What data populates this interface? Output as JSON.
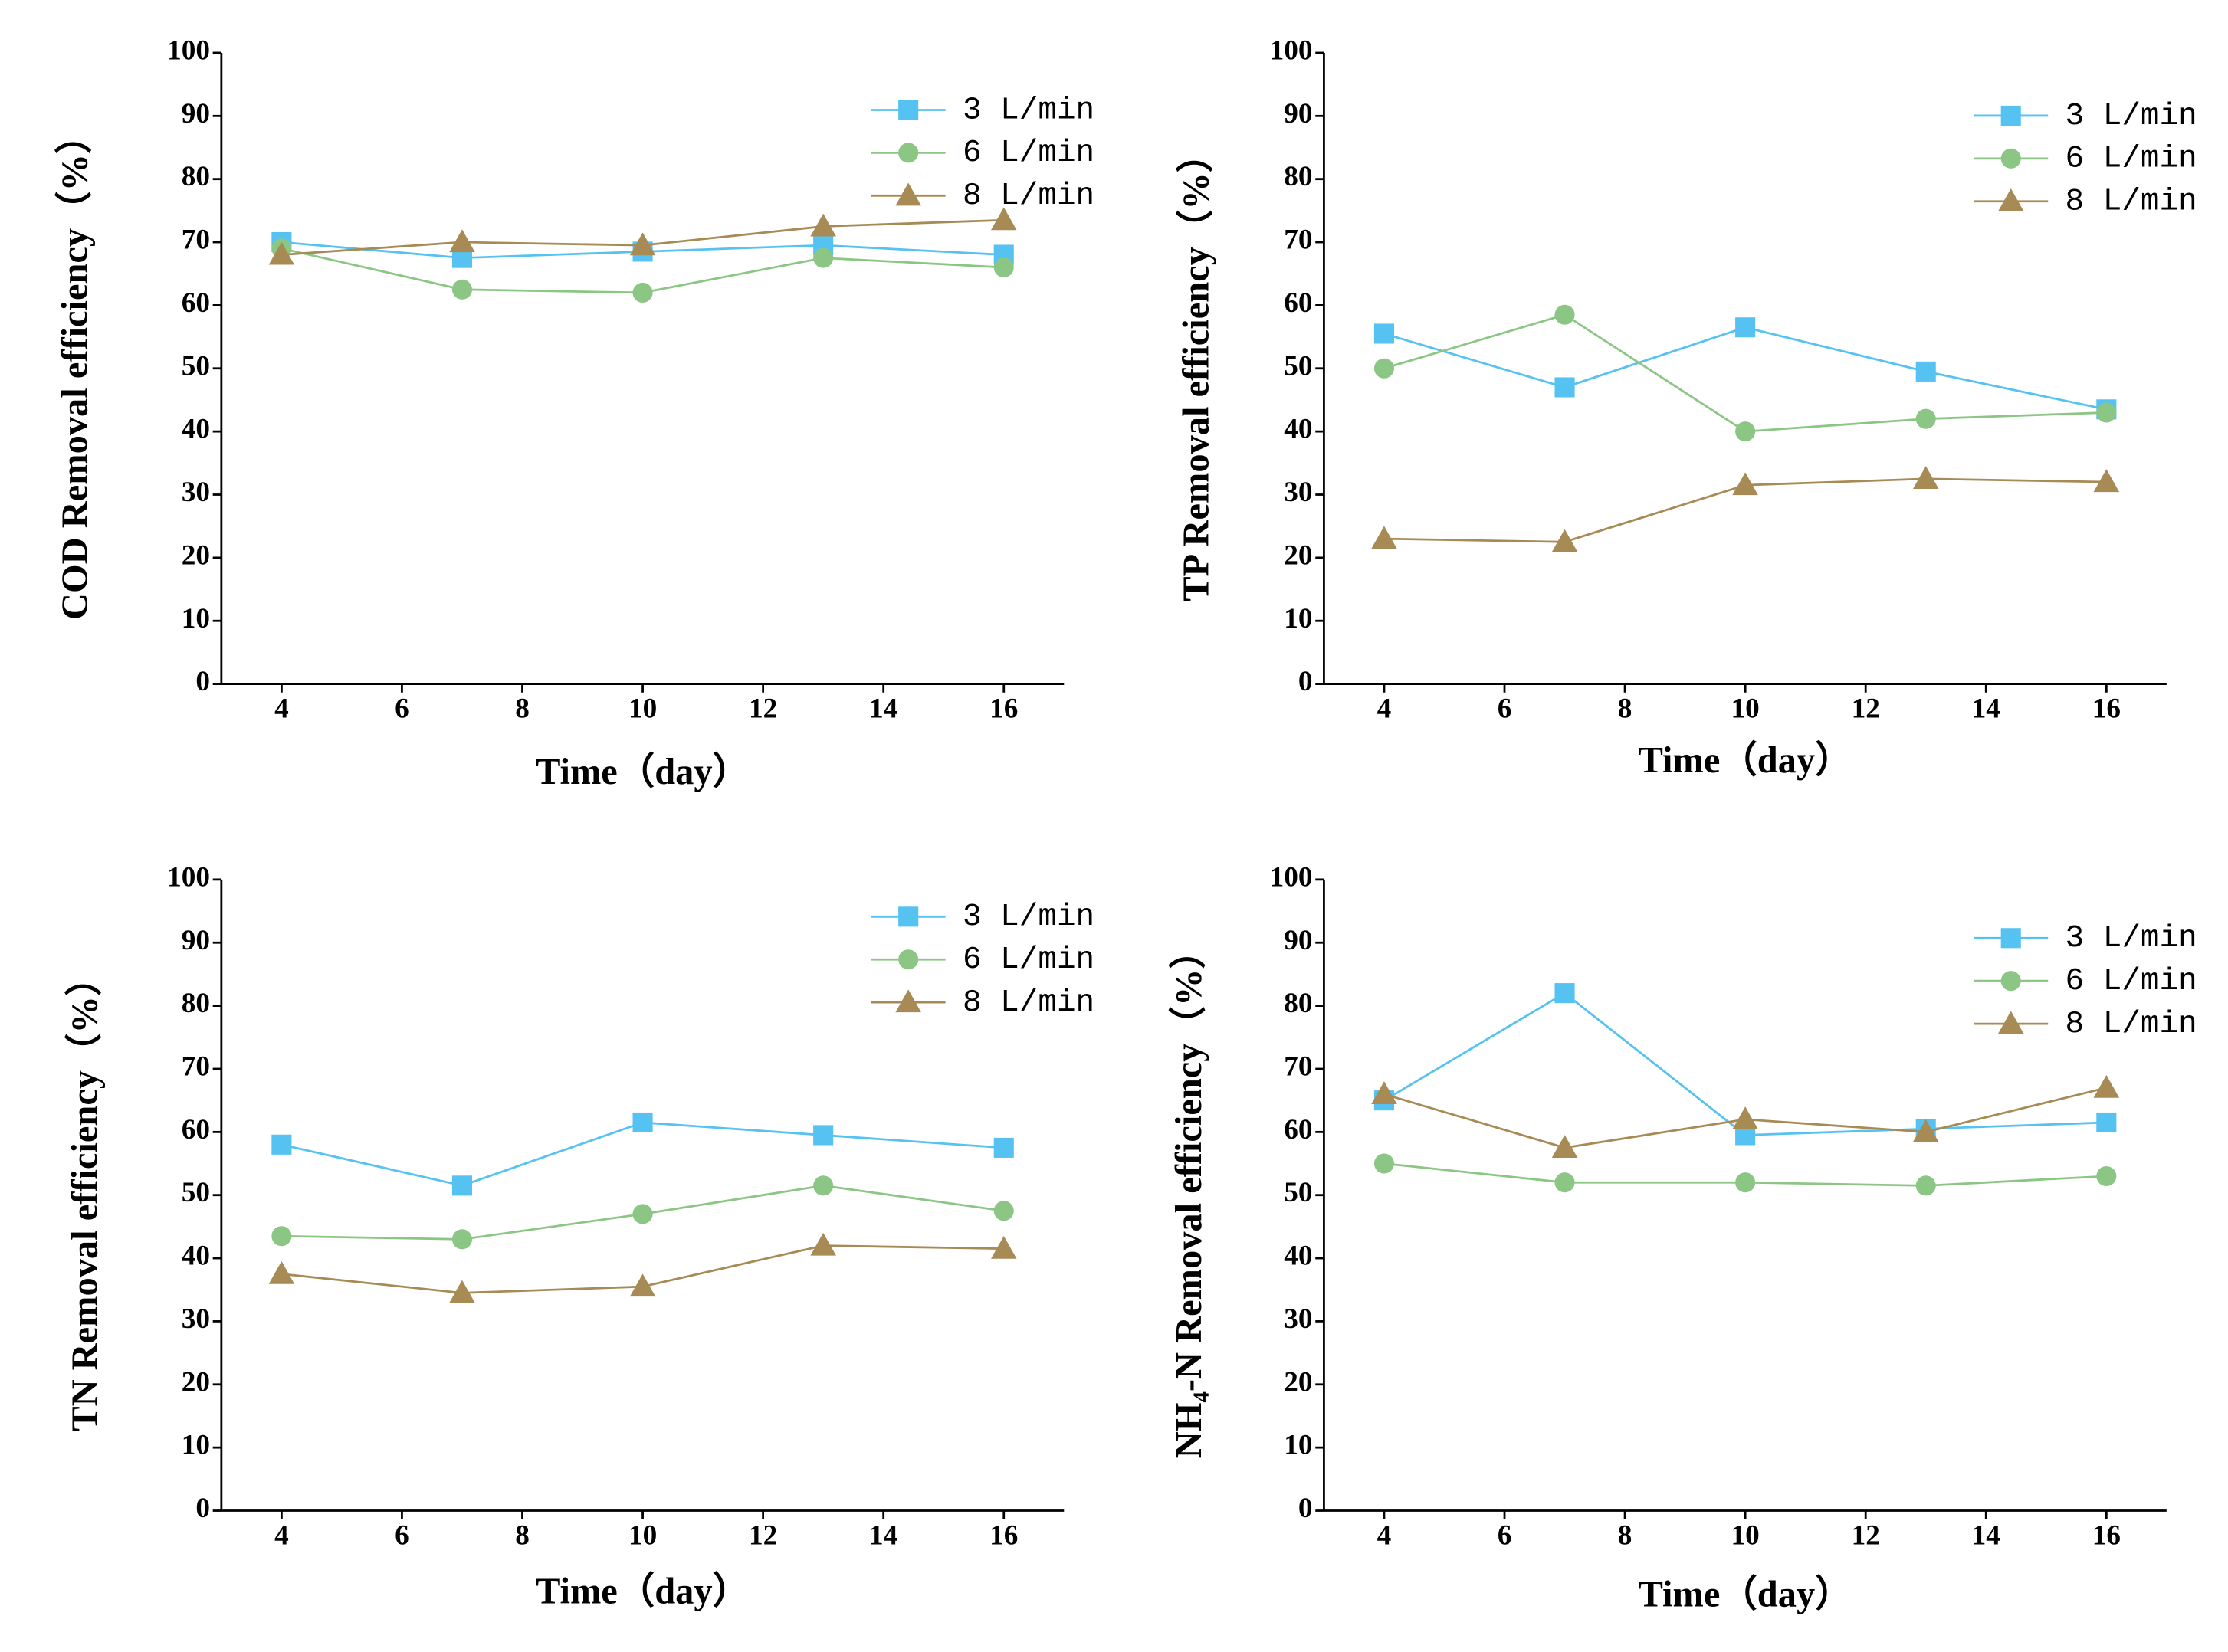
{
  "chart_data": [
    {
      "type": "line",
      "xlabel": "Time（day）",
      "ylabel": "COD Removal efficiency（%）",
      "x": [
        4,
        7,
        10,
        13,
        16
      ],
      "xlim": [
        3,
        17
      ],
      "xticks": [
        4,
        6,
        8,
        10,
        12,
        14,
        16
      ],
      "ylim": [
        0,
        100
      ],
      "yticks": [
        0,
        10,
        20,
        30,
        40,
        50,
        60,
        70,
        80,
        90,
        100
      ],
      "grid": false,
      "legend": "upper right",
      "series": [
        {
          "name": "3 L/min",
          "color": "#55c2f2",
          "marker": "square",
          "values": [
            70,
            67.5,
            68.5,
            69.5,
            68
          ]
        },
        {
          "name": "6 L/min",
          "color": "#8cc684",
          "marker": "circle",
          "values": [
            69,
            62.5,
            62,
            67.5,
            66
          ]
        },
        {
          "name": "8 L/min",
          "color": "#a88a55",
          "marker": "triangle",
          "values": [
            68,
            70,
            69.5,
            72.5,
            73.5
          ]
        }
      ]
    },
    {
      "type": "line",
      "xlabel": "Time（day）",
      "ylabel": "TP Removal efficiency（%）",
      "x": [
        4,
        7,
        10,
        13,
        16
      ],
      "xlim": [
        3,
        17
      ],
      "xticks": [
        4,
        6,
        8,
        10,
        12,
        14,
        16
      ],
      "ylim": [
        0,
        100
      ],
      "yticks": [
        0,
        10,
        20,
        30,
        40,
        50,
        60,
        70,
        80,
        90,
        100
      ],
      "grid": false,
      "legend": "upper right",
      "series": [
        {
          "name": "3 L/min",
          "color": "#55c2f2",
          "marker": "square",
          "values": [
            55.5,
            47,
            56.5,
            49.5,
            43.5
          ]
        },
        {
          "name": "6 L/min",
          "color": "#8cc684",
          "marker": "circle",
          "values": [
            50,
            58.5,
            40,
            42,
            43
          ]
        },
        {
          "name": "8 L/min",
          "color": "#a88a55",
          "marker": "triangle",
          "values": [
            23,
            22.5,
            31.5,
            32.5,
            32
          ]
        }
      ]
    },
    {
      "type": "line",
      "xlabel": "Time（day）",
      "ylabel": "TN Removal efficiency（%）",
      "x": [
        4,
        7,
        10,
        13,
        16
      ],
      "xlim": [
        3,
        17
      ],
      "xticks": [
        4,
        6,
        8,
        10,
        12,
        14,
        16
      ],
      "ylim": [
        0,
        100
      ],
      "yticks": [
        0,
        10,
        20,
        30,
        40,
        50,
        60,
        70,
        80,
        90,
        100
      ],
      "grid": false,
      "legend": "upper right",
      "series": [
        {
          "name": "3 L/min",
          "color": "#55c2f2",
          "marker": "square",
          "values": [
            58,
            51.5,
            61.5,
            59.5,
            57.5
          ]
        },
        {
          "name": "6 L/min",
          "color": "#8cc684",
          "marker": "circle",
          "values": [
            43.5,
            43,
            47,
            51.5,
            47.5
          ]
        },
        {
          "name": "8 L/min",
          "color": "#a88a55",
          "marker": "triangle",
          "values": [
            37.5,
            34.5,
            35.5,
            42,
            41.5
          ]
        }
      ]
    },
    {
      "type": "line",
      "xlabel": "Time（day）",
      "ylabel": "NH₄-N Removal efficiency（%）",
      "x": [
        4,
        7,
        10,
        13,
        16
      ],
      "xlim": [
        3,
        17
      ],
      "xticks": [
        4,
        6,
        8,
        10,
        12,
        14,
        16
      ],
      "ylim": [
        0,
        100
      ],
      "yticks": [
        0,
        10,
        20,
        30,
        40,
        50,
        60,
        70,
        80,
        90,
        100
      ],
      "grid": false,
      "legend": "upper right",
      "series": [
        {
          "name": "3 L/min",
          "color": "#55c2f2",
          "marker": "square",
          "values": [
            65,
            82,
            59.5,
            60.5,
            61.5
          ]
        },
        {
          "name": "6 L/min",
          "color": "#8cc684",
          "marker": "circle",
          "values": [
            55,
            52,
            52,
            51.5,
            53
          ]
        },
        {
          "name": "8 L/min",
          "color": "#a88a55",
          "marker": "triangle",
          "values": [
            66,
            57.5,
            62,
            60,
            67
          ]
        }
      ]
    }
  ]
}
